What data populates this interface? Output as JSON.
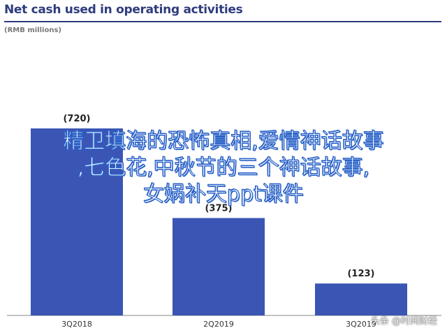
{
  "header": {
    "title": "Net cash used in operating activities",
    "subtitle": "(RMB millions)"
  },
  "overlay": {
    "lines": [
      "精卫填海的恐怖真相,爱情神话故事",
      ",七色花,中秋节的三个神话故事,",
      "女娲补天ppt课件"
    ]
  },
  "watermark": {
    "text": "头条 @时间财经"
  },
  "colors": {
    "bar": "#3b55b5",
    "title": "#2e3b7e",
    "axis": "#888888"
  },
  "chart_data": {
    "type": "bar",
    "categories": [
      "3Q2018",
      "2Q2019",
      "3Q2019"
    ],
    "values": [
      -720,
      -375,
      -123
    ],
    "data_labels": [
      "(720)",
      "(375)",
      "(123)"
    ],
    "title": "Net cash used in operating activities",
    "subtitle": "(RMB millions)",
    "xlabel": "",
    "ylabel": "",
    "ylim": [
      0,
      720
    ],
    "grid": false,
    "legend": "none"
  }
}
